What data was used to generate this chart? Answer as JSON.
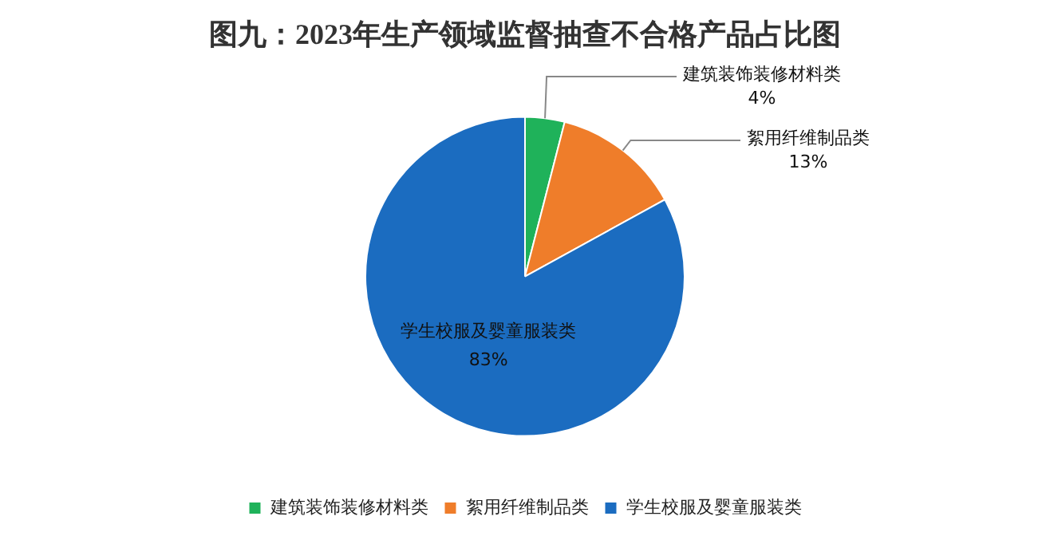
{
  "chart_data": {
    "type": "pie",
    "title": "图九：2023年生产领域监督抽查不合格产品占比图",
    "categories": [
      "建筑装饰装修材料类",
      "絮用纤维制品类",
      "学生校服及婴童服装类"
    ],
    "values": [
      4,
      13,
      83
    ],
    "value_labels": [
      "4%",
      "13%",
      "83%"
    ],
    "colors": [
      "#1fb25a",
      "#ef7d2a",
      "#1b6cc0"
    ],
    "legend": "bottom"
  }
}
